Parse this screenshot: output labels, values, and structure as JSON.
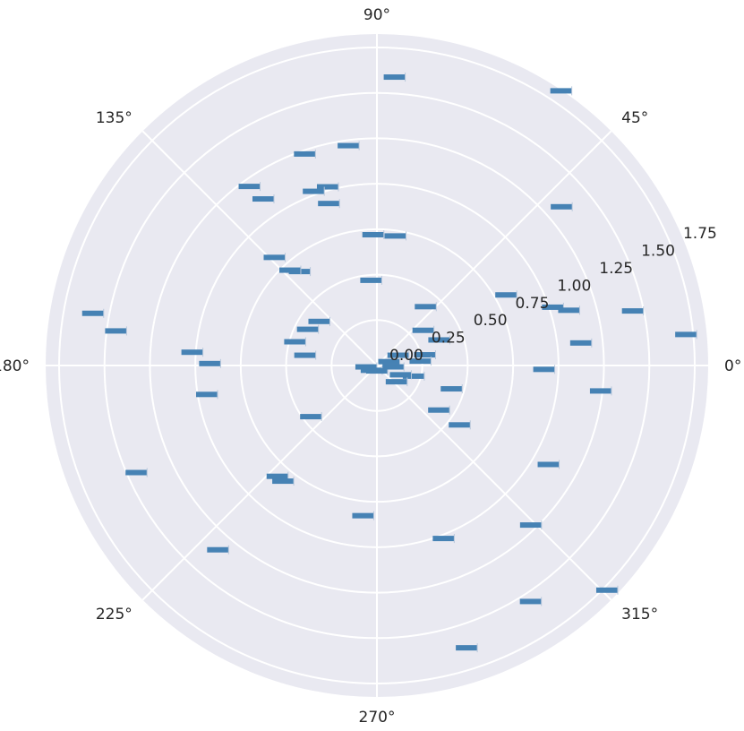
{
  "chart_data": {
    "type": "polar-bar",
    "title": "",
    "xlabel": "",
    "ylabel": "",
    "theta_tick_labels": [
      "0°",
      "45°",
      "90°",
      "135°",
      "180°",
      "225°",
      "270°",
      "315°"
    ],
    "theta_tick_degrees": [
      0,
      45,
      90,
      135,
      180,
      225,
      270,
      315
    ],
    "r_tick_labels": [
      "0.00",
      "0.25",
      "0.50",
      "0.75",
      "1.00",
      "1.25",
      "1.50",
      "1.75"
    ],
    "r_tick_values": [
      0,
      0.25,
      0.5,
      0.75,
      1.0,
      1.25,
      1.5,
      1.75
    ],
    "rlim": [
      0,
      1.75
    ],
    "grid": true,
    "colors": {
      "background": "#e9e9f1",
      "grid": "#ffffff",
      "bar": "#4682b4"
    },
    "points": [
      {
        "x": 0.98,
        "y": 1.82
      },
      {
        "x": 0.5,
        "y": 0.81
      },
      {
        "x": 1.64,
        "y": 0.47
      },
      {
        "x": 0.71,
        "y": 1.34
      },
      {
        "x": 1.51,
        "y": 1.59
      },
      {
        "x": 1.7,
        "y": 1.22
      },
      {
        "x": 1.84,
        "y": 1.02
      },
      {
        "x": 1.86,
        "y": 0.93
      },
      {
        "x": 2.19,
        "y": 1.21
      },
      {
        "x": 1.92,
        "y": 1.02
      },
      {
        "x": 1.9,
        "y": 1.23
      },
      {
        "x": 1.6,
        "y": 0.72
      },
      {
        "x": 2.17,
        "y": 1.11
      },
      {
        "x": 2.26,
        "y": 0.67
      },
      {
        "x": 2.31,
        "y": 0.71
      },
      {
        "x": 2.49,
        "y": 0.4
      },
      {
        "x": 2.33,
        "y": 0.82
      },
      {
        "x": 2.66,
        "y": 0.43
      },
      {
        "x": 2.96,
        "y": 1.59
      },
      {
        "x": 3.01,
        "y": 1.45
      },
      {
        "x": 3.0,
        "y": 0.4
      },
      {
        "x": 3.07,
        "y": 1.02
      },
      {
        "x": 3.13,
        "y": 0.92
      },
      {
        "x": 3.31,
        "y": 0.95
      },
      {
        "x": 3.56,
        "y": 1.45
      },
      {
        "x": 3.8,
        "y": 0.46
      },
      {
        "x": 3.98,
        "y": 0.82
      },
      {
        "x": 4.03,
        "y": 0.82
      },
      {
        "x": 4.0,
        "y": 1.34
      },
      {
        "x": 4.62,
        "y": 0.83
      },
      {
        "x": 5.02,
        "y": 1.63
      },
      {
        "x": 5.08,
        "y": 1.02
      },
      {
        "x": 5.29,
        "y": 1.55
      },
      {
        "x": 5.48,
        "y": 1.22
      },
      {
        "x": 5.51,
        "y": 1.77
      },
      {
        "x": 5.66,
        "y": 0.56
      },
      {
        "x": 5.66,
        "y": 0.42
      },
      {
        "x": 5.98,
        "y": 0.43
      },
      {
        "x": 5.76,
        "y": 1.09
      },
      {
        "x": 6.0,
        "y": 0.21
      },
      {
        "x": 6.26,
        "y": 0.92
      },
      {
        "x": 6.17,
        "y": 1.24
      },
      {
        "x": 0.11,
        "y": 1.13
      },
      {
        "x": 0.32,
        "y": 1.02
      },
      {
        "x": 0.28,
        "y": 1.1
      },
      {
        "x": 0.21,
        "y": 1.44
      },
      {
        "x": 0.1,
        "y": 1.71
      },
      {
        "x": 0.22,
        "y": 0.27
      },
      {
        "x": 0.39,
        "y": 0.37
      },
      {
        "x": 0.88,
        "y": 0.42
      },
      {
        "x": 0.65,
        "y": 0.32
      },
      {
        "x": 1.43,
        "y": 0.72
      },
      {
        "x": 2.86,
        "y": 0.47
      },
      {
        "x": 0.45,
        "y": 0.13
      },
      {
        "x": 0.1,
        "y": 0.24
      },
      {
        "x": 5.59,
        "y": 0.14
      },
      {
        "x": 3.27,
        "y": 0.06
      },
      {
        "x": 3.86,
        "y": 0.04
      },
      {
        "x": 4.71,
        "y": 0.03
      },
      {
        "x": 0.31,
        "y": 0.07
      },
      {
        "x": 5.91,
        "y": 0.14
      },
      {
        "x": 6.2,
        "y": 0.09
      }
    ]
  }
}
